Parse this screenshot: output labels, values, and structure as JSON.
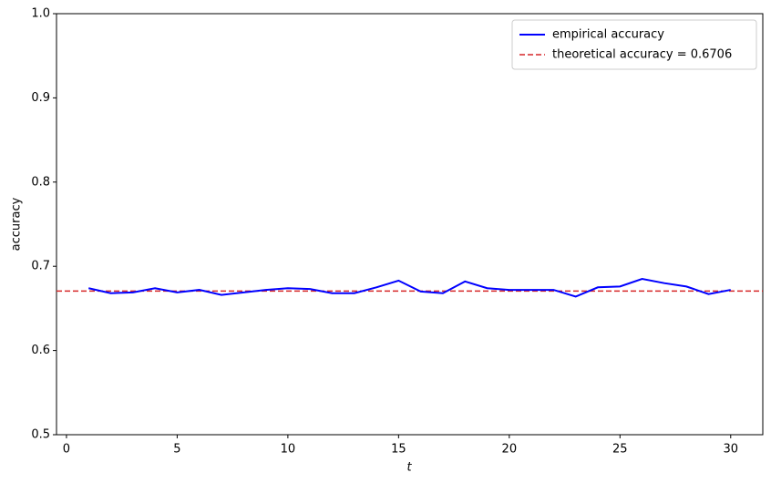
{
  "chart_data": {
    "type": "line",
    "x": [
      1,
      2,
      3,
      4,
      5,
      6,
      7,
      8,
      9,
      10,
      11,
      12,
      13,
      14,
      15,
      16,
      17,
      18,
      19,
      20,
      21,
      22,
      23,
      24,
      25,
      26,
      27,
      28,
      29,
      30
    ],
    "series": [
      {
        "name": "empirical accuracy",
        "color": "#0000ff",
        "values": [
          0.674,
          0.668,
          0.669,
          0.674,
          0.669,
          0.672,
          0.666,
          0.669,
          0.672,
          0.674,
          0.673,
          0.668,
          0.668,
          0.675,
          0.683,
          0.67,
          0.668,
          0.682,
          0.674,
          0.672,
          0.672,
          0.672,
          0.664,
          0.675,
          0.676,
          0.685,
          0.68,
          0.676,
          0.667,
          0.672
        ]
      }
    ],
    "reference_line": {
      "name": "theoretical accuracy = 0.6706",
      "value": 0.6706,
      "color": "#d62728"
    },
    "xlabel": "t",
    "ylabel": "accuracy",
    "xlim": [
      -0.45,
      31.45
    ],
    "ylim": [
      0.5,
      1.0
    ],
    "xticks": [
      0,
      5,
      10,
      15,
      20,
      25,
      30
    ],
    "yticks": [
      0.5,
      0.6,
      0.7,
      0.8,
      0.9,
      {
        "value": 1.0,
        "label": "1.0"
      }
    ],
    "legend": "upper right"
  }
}
